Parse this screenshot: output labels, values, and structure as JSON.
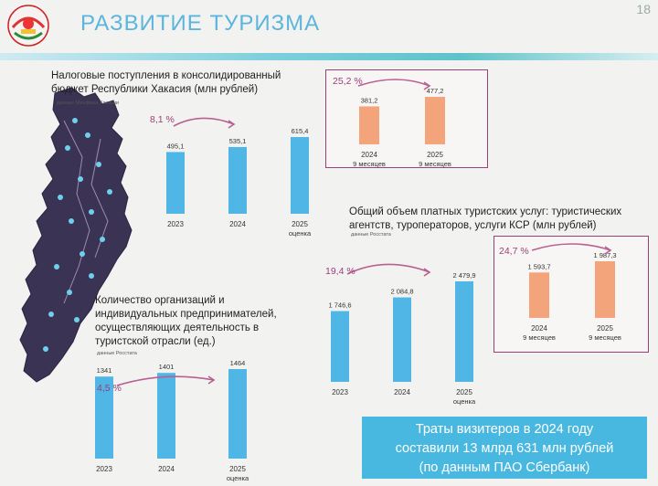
{
  "header": {
    "title": "РАЗВИТИЕ ТУРИЗМА",
    "page_number": "18"
  },
  "colors": {
    "blue": "#4fb6e6",
    "orange": "#f4a47a",
    "accent": "#9b3f78"
  },
  "tax": {
    "title_lines": [
      "Налоговые поступления в консолидированный",
      "бюджет Республики Хакасия (млн рублей)"
    ],
    "source": "данные Минфина Хакасии",
    "growth": "8,1 %",
    "chart_data": {
      "type": "bar",
      "categories": [
        "2023",
        "2024",
        "2025"
      ],
      "category_notes": [
        "",
        "",
        "оценка"
      ],
      "values": [
        495.1,
        535.1,
        615.4
      ],
      "labels": [
        "495,1",
        "535,1",
        "615,4"
      ]
    }
  },
  "tax_9m": {
    "growth": "25,2 %",
    "chart_data": {
      "type": "bar",
      "categories": [
        "2024",
        "2025"
      ],
      "category_notes": [
        "9 месяцев",
        "9 месяцев"
      ],
      "values": [
        381.2,
        477.2
      ],
      "labels": [
        "381,2",
        "477,2"
      ]
    }
  },
  "services": {
    "title_lines": [
      "Общий объем платных туристских услуг: туристических",
      "агентств, туроператоров, услуги КСР (млн рублей)"
    ],
    "source": "данные Росстата",
    "growth": "19,4 %",
    "chart_data": {
      "type": "bar",
      "categories": [
        "2023",
        "2024",
        "2025"
      ],
      "category_notes": [
        "",
        "",
        "оценка"
      ],
      "values": [
        1746.6,
        2084.8,
        2479.9
      ],
      "labels": [
        "1 746,6",
        "2 084,8",
        "2 479,9"
      ]
    }
  },
  "services_9m": {
    "growth": "24,7 %",
    "chart_data": {
      "type": "bar",
      "categories": [
        "2024",
        "2025"
      ],
      "category_notes": [
        "9 месяцев",
        "9 месяцев"
      ],
      "values": [
        1593.7,
        1987.3
      ],
      "labels": [
        "1 593,7",
        "1 987,3"
      ]
    }
  },
  "orgs": {
    "title_lines": [
      "Количество организаций и",
      "индивидуальных предпринимателей,",
      "осуществляющих деятельность в",
      "туристской отрасли (ед.)"
    ],
    "source": "данные Росстата",
    "growth": "4,5 %",
    "chart_data": {
      "type": "bar",
      "categories": [
        "2023",
        "2024",
        "2025"
      ],
      "category_notes": [
        "",
        "",
        "оценка"
      ],
      "values": [
        1341,
        1401,
        1464
      ],
      "labels": [
        "1341",
        "1401",
        "1464"
      ]
    }
  },
  "note": {
    "lines": [
      "Траты визитеров в 2024 году",
      "составили 13 млрд 631 млн рублей",
      "(по данным ПАО Сбербанк)"
    ]
  }
}
